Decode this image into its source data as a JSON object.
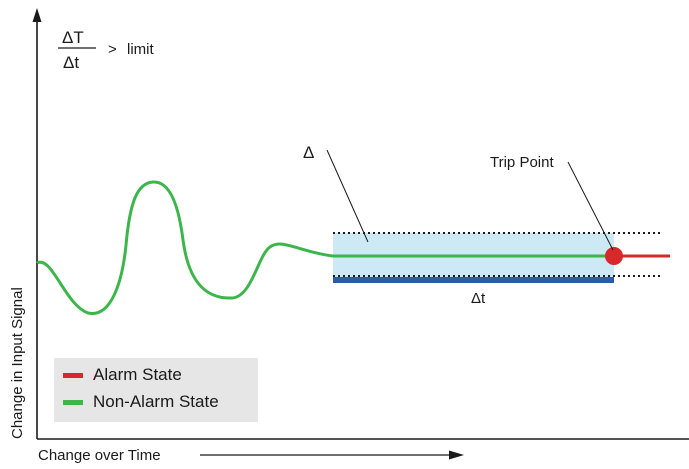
{
  "formula": {
    "numerator": "ΔT",
    "denominator": "Δt",
    "operator": ">",
    "rhs": "limit"
  },
  "axes": {
    "y_label": "Change in Input Signal",
    "x_label": "Change over Time"
  },
  "annotations": {
    "delta": "Δ",
    "delta_t": "Δt",
    "trip_point": "Trip Point"
  },
  "legend": {
    "items": [
      {
        "label": "Alarm State",
        "color": "#d7282a"
      },
      {
        "label": "Non-Alarm State",
        "color": "#3cb64a"
      }
    ]
  },
  "colors": {
    "alarm": "#d7282a",
    "non_alarm": "#3cb64a",
    "window_fill": "#cde9f5",
    "window_base": "#2f5aa8",
    "axis": "#1a1a1a"
  }
}
